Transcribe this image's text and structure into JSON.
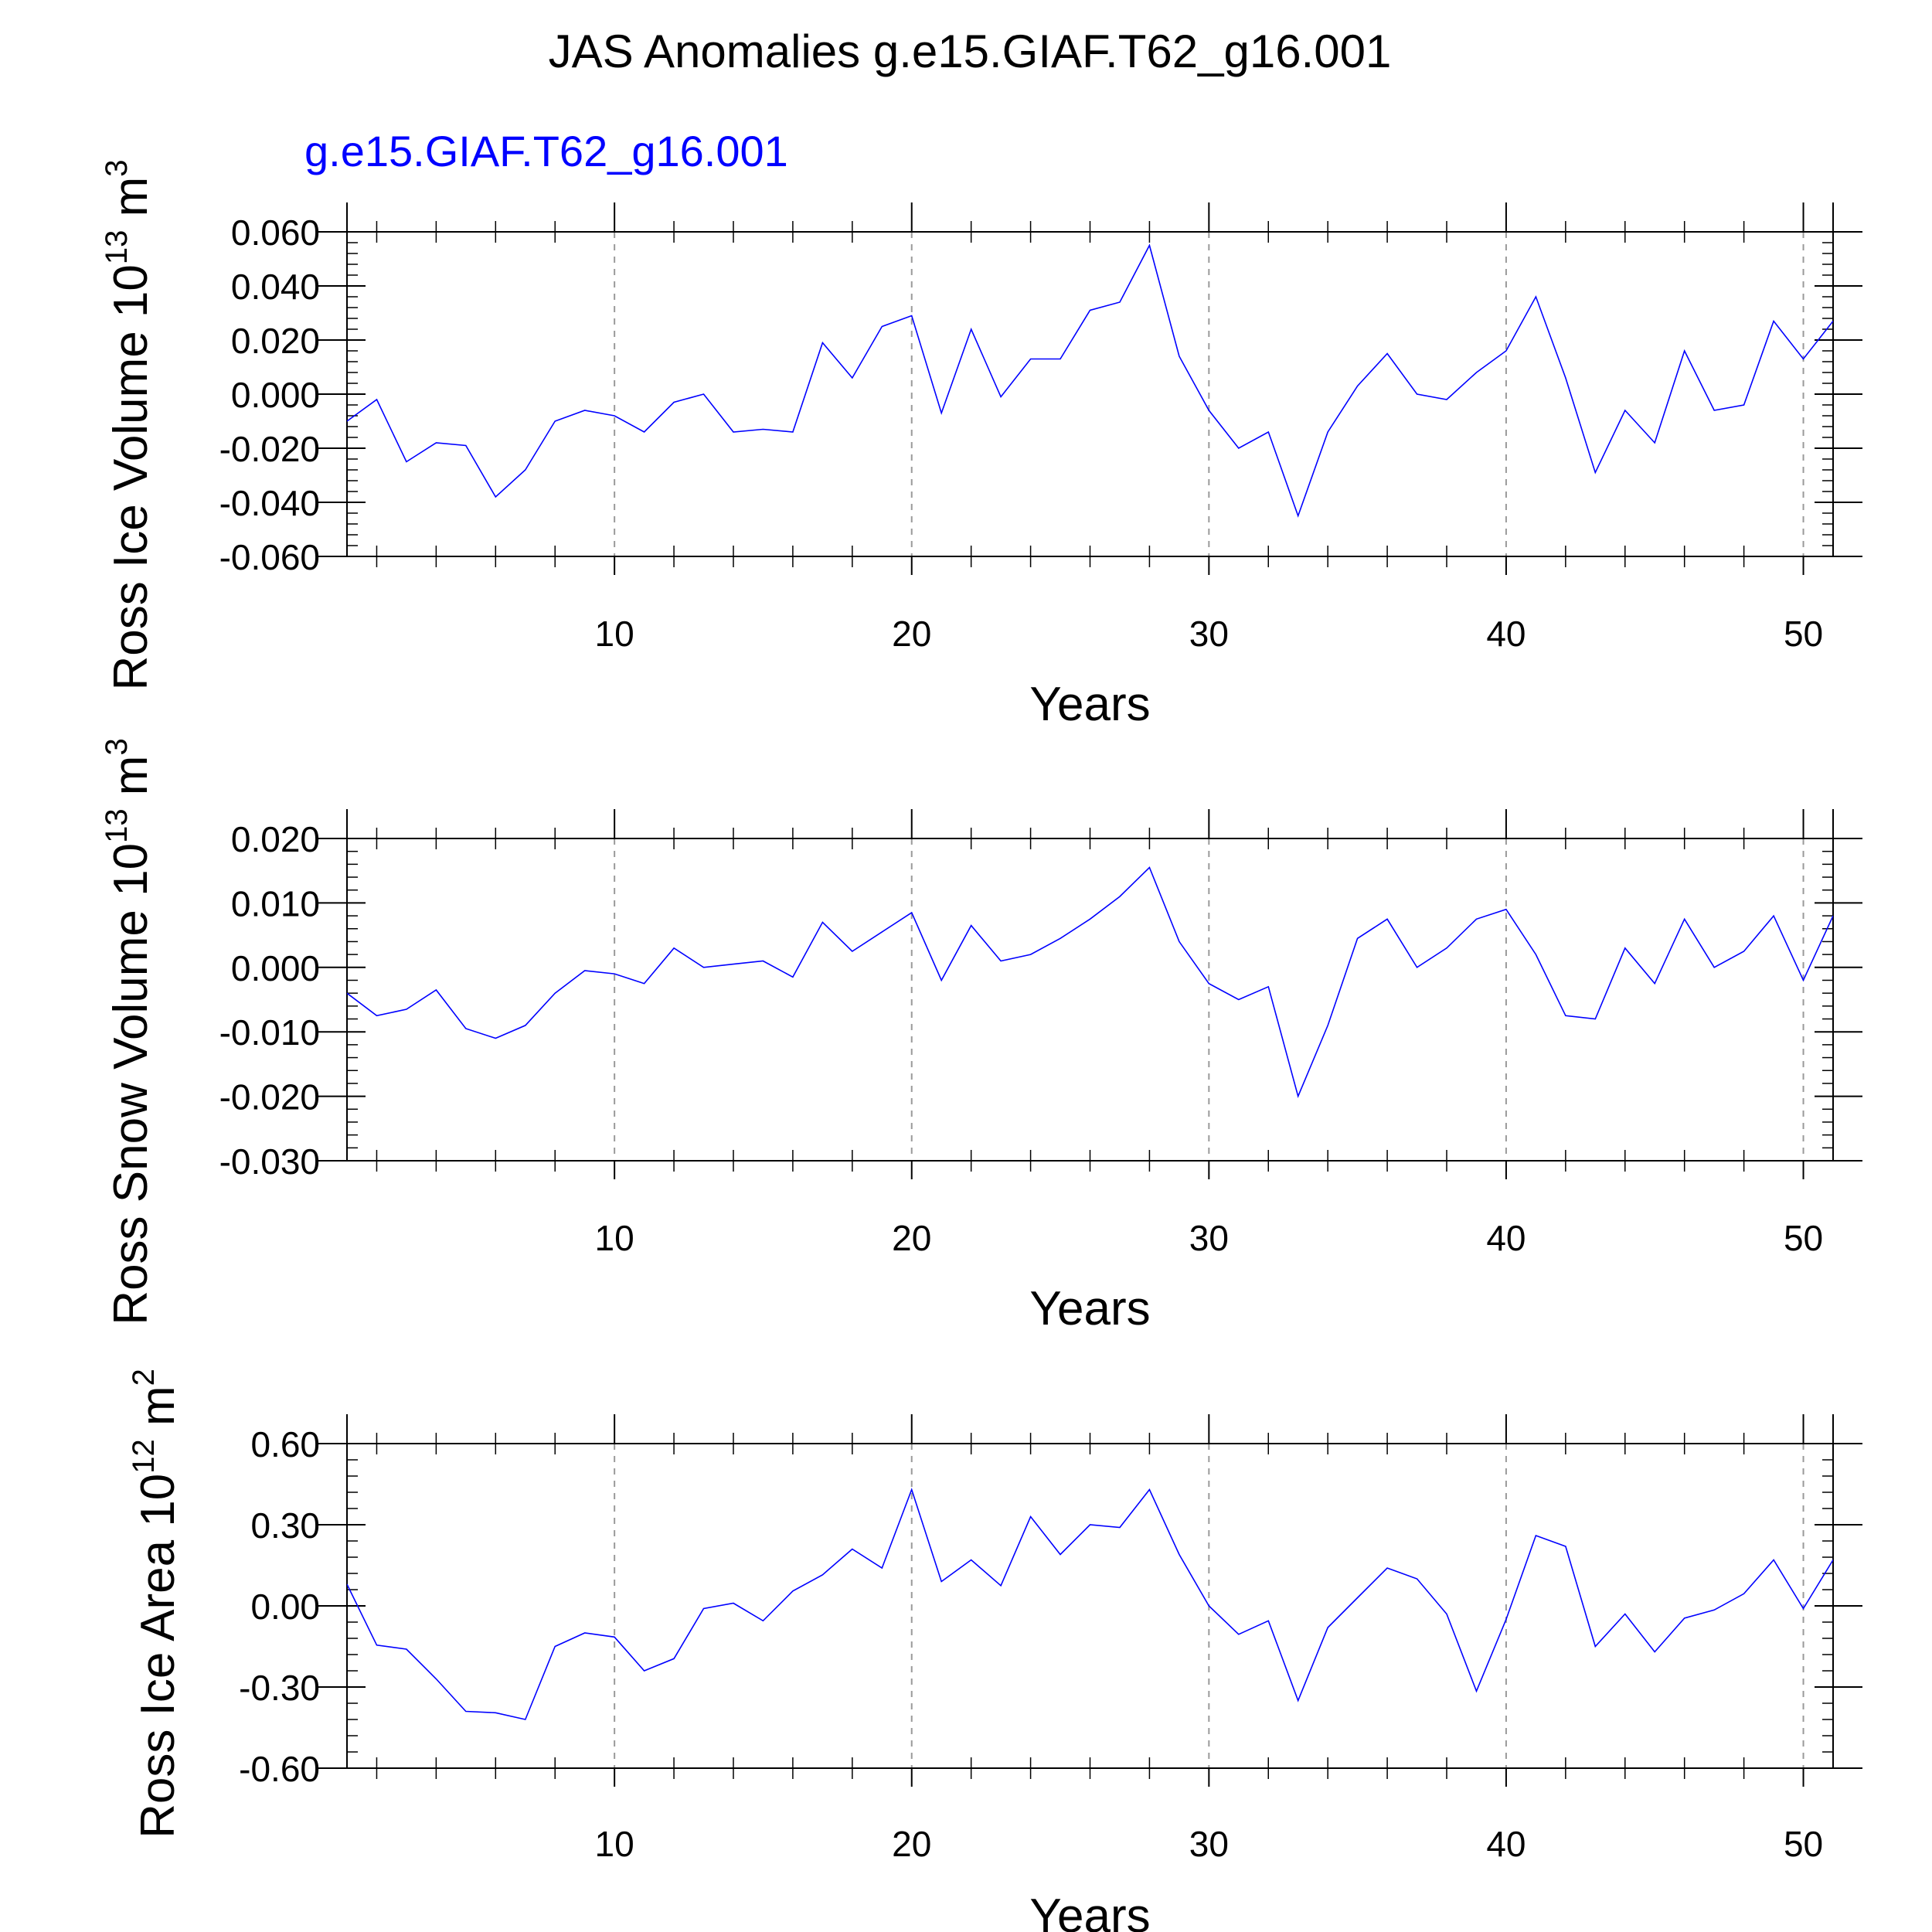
{
  "figure": {
    "title": "JAS Anomalies g.e15.GIAF.T62_g16.001",
    "subtitle": "g.e15.GIAF.T62_g16.001",
    "subtitle_color": "#0000ff",
    "line_color": "#0000ff"
  },
  "chart_data": [
    {
      "type": "line",
      "ylabel_main": "Ross Ice Volume 10",
      "ylabel_exp": "13",
      "ylabel_unit": " m",
      "ylabel_unit_exp": "3",
      "xlabel": "Years",
      "xlim": [
        1,
        51
      ],
      "ylim": [
        -0.06,
        0.06
      ],
      "xticks": [
        10,
        20,
        30,
        40,
        50
      ],
      "xtick_labels": [
        "10",
        "20",
        "30",
        "40",
        "50"
      ],
      "yticks": [
        0.06,
        0.04,
        0.02,
        0.0,
        -0.02,
        -0.04,
        -0.06
      ],
      "ytick_labels": [
        "0.060",
        "0.040",
        "0.020",
        "0.000",
        "-0.020",
        "-0.040",
        "-0.060"
      ],
      "grid_x": "dashed at major ticks",
      "x": [
        1,
        2,
        3,
        4,
        5,
        6,
        7,
        8,
        9,
        10,
        11,
        12,
        13,
        14,
        15,
        16,
        17,
        18,
        19,
        20,
        21,
        22,
        23,
        24,
        25,
        26,
        27,
        28,
        29,
        30,
        31,
        32,
        33,
        34,
        35,
        36,
        37,
        38,
        39,
        40,
        41,
        42,
        43,
        44,
        45,
        46,
        47,
        48,
        49,
        50,
        51
      ],
      "y": [
        -0.01,
        -0.002,
        -0.025,
        -0.018,
        -0.019,
        -0.038,
        -0.028,
        -0.01,
        -0.006,
        -0.008,
        -0.014,
        -0.003,
        0.0,
        -0.014,
        -0.013,
        -0.014,
        0.019,
        0.006,
        0.025,
        0.029,
        -0.007,
        0.024,
        -0.001,
        0.013,
        0.013,
        0.031,
        0.034,
        0.055,
        0.014,
        -0.006,
        -0.02,
        -0.014,
        -0.045,
        -0.014,
        0.003,
        0.015,
        0.0,
        -0.002,
        0.008,
        0.016,
        0.036,
        0.006,
        -0.029,
        -0.006,
        -0.018,
        0.016,
        -0.006,
        -0.004,
        0.027,
        0.013,
        0.027
      ]
    },
    {
      "type": "line",
      "ylabel_main": "Ross Snow Volume 10",
      "ylabel_exp": "13",
      "ylabel_unit": " m",
      "ylabel_unit_exp": "3",
      "xlabel": "Years",
      "xlim": [
        1,
        51
      ],
      "ylim": [
        -0.03,
        0.02
      ],
      "xticks": [
        10,
        20,
        30,
        40,
        50
      ],
      "xtick_labels": [
        "10",
        "20",
        "30",
        "40",
        "50"
      ],
      "yticks": [
        0.02,
        0.01,
        0.0,
        -0.01,
        -0.02,
        -0.03
      ],
      "ytick_labels": [
        "0.020",
        "0.010",
        "0.000",
        "-0.010",
        "-0.020",
        "-0.030"
      ],
      "grid_x": "dashed at major ticks",
      "x": [
        1,
        2,
        3,
        4,
        5,
        6,
        7,
        8,
        9,
        10,
        11,
        12,
        13,
        14,
        15,
        16,
        17,
        18,
        19,
        20,
        21,
        22,
        23,
        24,
        25,
        26,
        27,
        28,
        29,
        30,
        31,
        32,
        33,
        34,
        35,
        36,
        37,
        38,
        39,
        40,
        41,
        42,
        43,
        44,
        45,
        46,
        47,
        48,
        49,
        50,
        51
      ],
      "y": [
        -0.004,
        -0.0075,
        -0.0065,
        -0.0035,
        -0.0095,
        -0.011,
        -0.009,
        -0.004,
        -0.0005,
        -0.001,
        -0.0025,
        0.003,
        0.0,
        0.0005,
        0.001,
        -0.0015,
        0.007,
        0.0025,
        0.0055,
        0.0085,
        -0.002,
        0.0065,
        0.001,
        0.002,
        0.0045,
        0.0075,
        0.011,
        0.0155,
        0.004,
        -0.0025,
        -0.005,
        -0.003,
        -0.02,
        -0.009,
        0.0045,
        0.0075,
        0.0,
        0.003,
        0.0075,
        0.009,
        0.002,
        -0.0075,
        -0.008,
        0.003,
        -0.0025,
        0.0075,
        0.0,
        0.0025,
        0.008,
        -0.002,
        0.008
      ]
    },
    {
      "type": "line",
      "ylabel_main": "Ross Ice Area 10",
      "ylabel_exp": "12",
      "ylabel_unit": " m",
      "ylabel_unit_exp": "2",
      "xlabel": "Years",
      "xlim": [
        1,
        51
      ],
      "ylim": [
        -0.6,
        0.6
      ],
      "xticks": [
        10,
        20,
        30,
        40,
        50
      ],
      "xtick_labels": [
        "10",
        "20",
        "30",
        "40",
        "50"
      ],
      "yticks": [
        0.6,
        0.3,
        0.0,
        -0.3,
        -0.6
      ],
      "ytick_labels": [
        "0.60",
        "0.30",
        "0.00",
        "-0.30",
        "-0.60"
      ],
      "grid_x": "dashed at major ticks",
      "x": [
        1,
        2,
        3,
        4,
        5,
        6,
        7,
        8,
        9,
        10,
        11,
        12,
        13,
        14,
        15,
        16,
        17,
        18,
        19,
        20,
        21,
        22,
        23,
        24,
        25,
        26,
        27,
        28,
        29,
        30,
        31,
        32,
        33,
        34,
        35,
        36,
        37,
        38,
        39,
        40,
        41,
        42,
        43,
        44,
        45,
        46,
        47,
        48,
        49,
        50,
        51
      ],
      "y": [
        0.08,
        -0.145,
        -0.16,
        -0.27,
        -0.39,
        -0.395,
        -0.42,
        -0.15,
        -0.1,
        -0.115,
        -0.24,
        -0.195,
        -0.01,
        0.01,
        -0.055,
        0.055,
        0.115,
        0.21,
        0.14,
        0.43,
        0.09,
        0.17,
        0.075,
        0.33,
        0.19,
        0.3,
        0.29,
        0.43,
        0.19,
        0.0,
        -0.105,
        -0.055,
        -0.35,
        -0.08,
        0.03,
        0.14,
        0.1,
        -0.03,
        -0.315,
        -0.05,
        0.26,
        0.22,
        -0.15,
        -0.03,
        -0.17,
        -0.045,
        -0.015,
        0.045,
        0.17,
        -0.01,
        0.17
      ]
    }
  ]
}
